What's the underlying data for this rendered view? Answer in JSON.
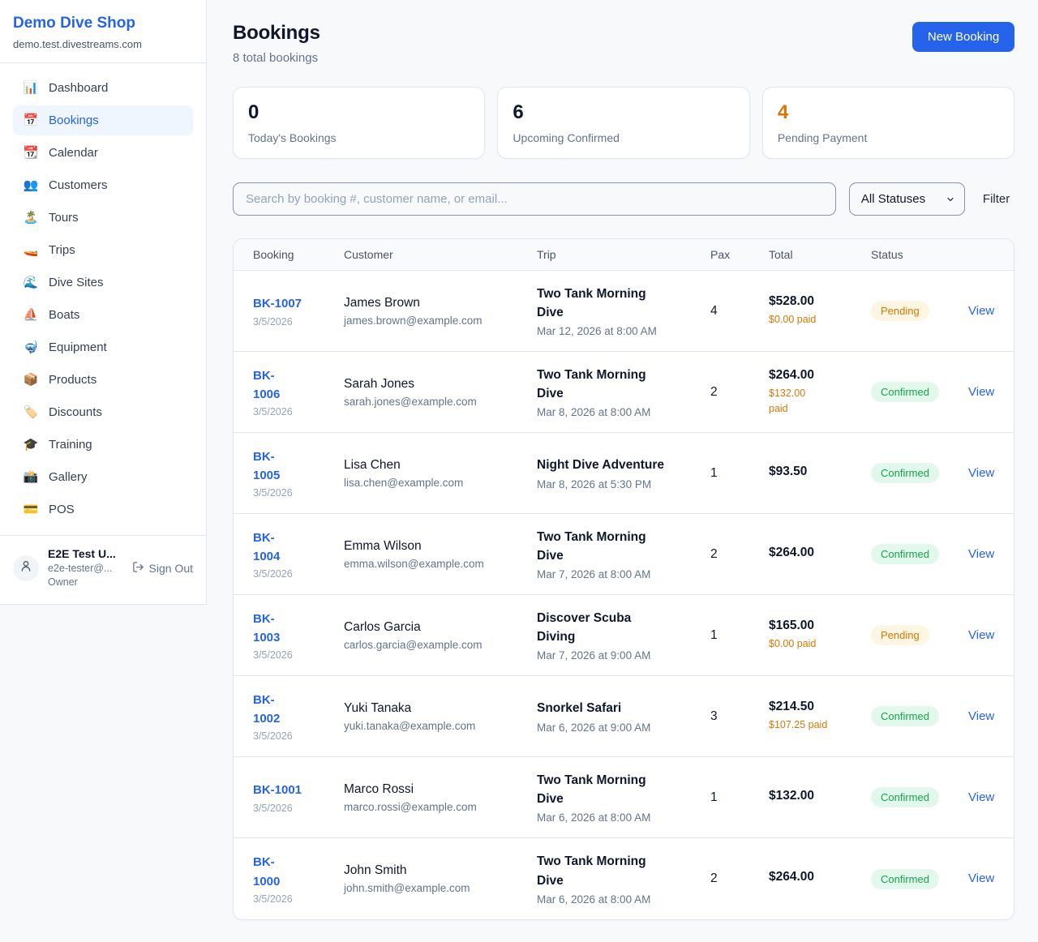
{
  "colors": {
    "accent_blue": "#2563eb",
    "pending_orange": "#d97706",
    "confirmed_green": "#16a34a",
    "page_background": "#f7f9fb"
  },
  "sidebar": {
    "brand": {
      "name": "Demo Dive Shop",
      "domain": "demo.test.divestreams.com"
    },
    "nav": [
      {
        "icon": "📊",
        "icon_name": "bar-chart-icon",
        "label": "Dashboard",
        "active": false
      },
      {
        "icon": "📅",
        "icon_name": "calendar-icon",
        "label": "Bookings",
        "active": true
      },
      {
        "icon": "📆",
        "icon_name": "tear-off-calendar-icon",
        "label": "Calendar",
        "active": false
      },
      {
        "icon": "👥",
        "icon_name": "people-icon",
        "label": "Customers",
        "active": false
      },
      {
        "icon": "🏝️",
        "icon_name": "island-icon",
        "label": "Tours",
        "active": false
      },
      {
        "icon": "🚤",
        "icon_name": "speedboat-icon",
        "label": "Trips",
        "active": false
      },
      {
        "icon": "🌊",
        "icon_name": "wave-icon",
        "label": "Dive Sites",
        "active": false
      },
      {
        "icon": "⛵",
        "icon_name": "sailboat-icon",
        "label": "Boats",
        "active": false
      },
      {
        "icon": "🤿",
        "icon_name": "diving-mask-icon",
        "label": "Equipment",
        "active": false
      },
      {
        "icon": "📦",
        "icon_name": "package-icon",
        "label": "Products",
        "active": false
      },
      {
        "icon": "🏷️",
        "icon_name": "tag-icon",
        "label": "Discounts",
        "active": false
      },
      {
        "icon": "🎓",
        "icon_name": "graduation-cap-icon",
        "label": "Training",
        "active": false
      },
      {
        "icon": "📸",
        "icon_name": "camera-icon",
        "label": "Gallery",
        "active": false
      },
      {
        "icon": "💳",
        "icon_name": "credit-card-icon",
        "label": "POS",
        "active": false
      }
    ],
    "user": {
      "name": "E2E Test U...",
      "email": "e2e-tester@...",
      "role": "Owner",
      "signout_label": "Sign Out"
    }
  },
  "header": {
    "title": "Bookings",
    "subtitle": "8 total bookings",
    "new_booking_label": "New Booking"
  },
  "stats": [
    {
      "value": "0",
      "label": "Today's Bookings",
      "value_color": "#0f172a"
    },
    {
      "value": "6",
      "label": "Upcoming Confirmed",
      "value_color": "#0f172a"
    },
    {
      "value": "4",
      "label": "Pending Payment",
      "value_color": "#d97706"
    }
  ],
  "filters": {
    "search_placeholder": "Search by booking #, customer name, or email...",
    "status_selected": "All Statuses",
    "filter_label": "Filter"
  },
  "table": {
    "columns": [
      "Booking",
      "Customer",
      "Trip",
      "Pax",
      "Total",
      "Status"
    ],
    "view_label": "View",
    "rows": [
      {
        "id": "BK-1007",
        "id_lines": [
          "BK-1007"
        ],
        "date": "3/5/2026",
        "customer": "James Brown",
        "email": "james.brown@example.com",
        "trip": "Two Tank Morning Dive",
        "trip_lines": [
          "Two Tank Morning",
          "Dive"
        ],
        "trip_datetime": "Mar 12, 2026 at 8:00 AM",
        "pax": "4",
        "total": "$528.00",
        "paid": "$0.00 paid",
        "paid_lines": [
          "$0.00 paid"
        ],
        "status": "Pending"
      },
      {
        "id": "BK-1006",
        "id_lines": [
          "BK-",
          "1006"
        ],
        "date": "3/5/2026",
        "customer": "Sarah Jones",
        "email": "sarah.jones@example.com",
        "trip": "Two Tank Morning Dive",
        "trip_lines": [
          "Two Tank Morning",
          "Dive"
        ],
        "trip_datetime": "Mar 8, 2026 at 8:00 AM",
        "pax": "2",
        "total": "$264.00",
        "paid": "$132.00 paid",
        "paid_lines": [
          "$132.00",
          "paid"
        ],
        "status": "Confirmed"
      },
      {
        "id": "BK-1005",
        "id_lines": [
          "BK-",
          "1005"
        ],
        "date": "3/5/2026",
        "customer": "Lisa Chen",
        "email": "lisa.chen@example.com",
        "trip": "Night Dive Adventure",
        "trip_lines": [
          "Night Dive Adventure"
        ],
        "trip_datetime": "Mar 8, 2026 at 5:30 PM",
        "pax": "1",
        "total": "$93.50",
        "paid": "",
        "paid_lines": [],
        "status": "Confirmed"
      },
      {
        "id": "BK-1004",
        "id_lines": [
          "BK-",
          "1004"
        ],
        "date": "3/5/2026",
        "customer": "Emma Wilson",
        "email": "emma.wilson@example.com",
        "trip": "Two Tank Morning Dive",
        "trip_lines": [
          "Two Tank Morning",
          "Dive"
        ],
        "trip_datetime": "Mar 7, 2026 at 8:00 AM",
        "pax": "2",
        "total": "$264.00",
        "paid": "",
        "paid_lines": [],
        "status": "Confirmed"
      },
      {
        "id": "BK-1003",
        "id_lines": [
          "BK-",
          "1003"
        ],
        "date": "3/5/2026",
        "customer": "Carlos Garcia",
        "email": "carlos.garcia@example.com",
        "trip": "Discover Scuba Diving",
        "trip_lines": [
          "Discover Scuba",
          "Diving"
        ],
        "trip_datetime": "Mar 7, 2026 at 9:00 AM",
        "pax": "1",
        "total": "$165.00",
        "paid": "$0.00 paid",
        "paid_lines": [
          "$0.00 paid"
        ],
        "status": "Pending"
      },
      {
        "id": "BK-1002",
        "id_lines": [
          "BK-",
          "1002"
        ],
        "date": "3/5/2026",
        "customer": "Yuki Tanaka",
        "email": "yuki.tanaka@example.com",
        "trip": "Snorkel Safari",
        "trip_lines": [
          "Snorkel Safari"
        ],
        "trip_datetime": "Mar 6, 2026 at 9:00 AM",
        "pax": "3",
        "total": "$214.50",
        "paid": "$107.25 paid",
        "paid_lines": [
          "$107.25 paid"
        ],
        "status": "Confirmed"
      },
      {
        "id": "BK-1001",
        "id_lines": [
          "BK-1001"
        ],
        "date": "3/5/2026",
        "customer": "Marco Rossi",
        "email": "marco.rossi@example.com",
        "trip": "Two Tank Morning Dive",
        "trip_lines": [
          "Two Tank Morning",
          "Dive"
        ],
        "trip_datetime": "Mar 6, 2026 at 8:00 AM",
        "pax": "1",
        "total": "$132.00",
        "paid": "",
        "paid_lines": [],
        "status": "Confirmed"
      },
      {
        "id": "BK-1000",
        "id_lines": [
          "BK-",
          "1000"
        ],
        "date": "3/5/2026",
        "customer": "John Smith",
        "email": "john.smith@example.com",
        "trip": "Two Tank Morning Dive",
        "trip_lines": [
          "Two Tank Morning",
          "Dive"
        ],
        "trip_datetime": "Mar 6, 2026 at 8:00 AM",
        "pax": "2",
        "total": "$264.00",
        "paid": "",
        "paid_lines": [],
        "status": "Confirmed"
      }
    ]
  }
}
